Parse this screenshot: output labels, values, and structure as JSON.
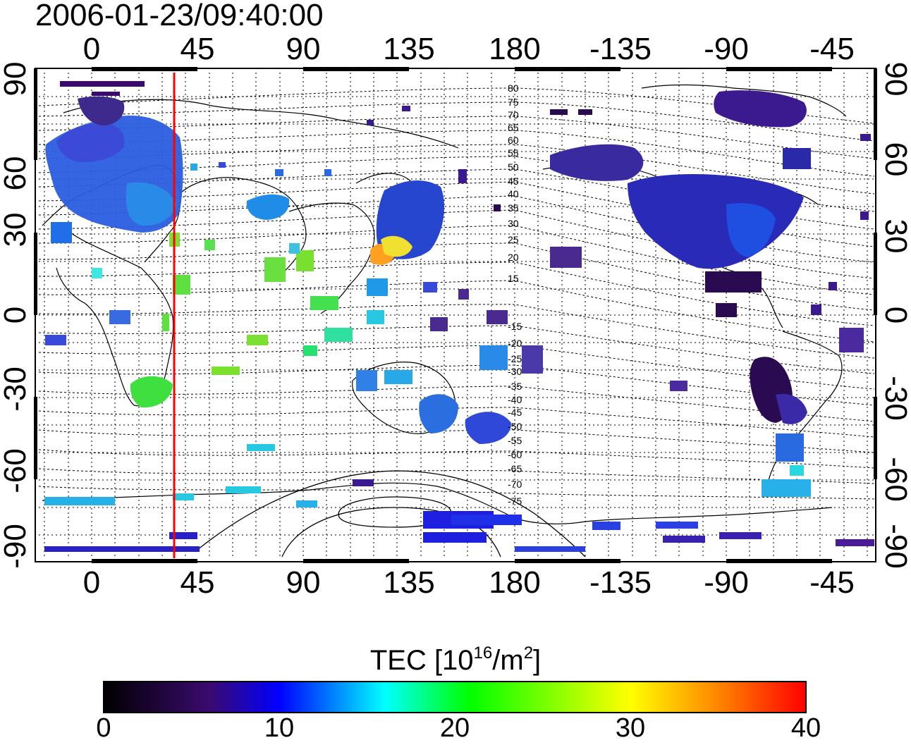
{
  "timestamp": "2006-01-23/09:40:00",
  "map": {
    "longitude_ticks": [
      "0",
      "45",
      "90",
      "135",
      "180",
      "-135",
      "-90",
      "-45"
    ],
    "latitude_ticks": [
      "90",
      "60",
      "30",
      "0",
      "-30",
      "-60",
      "-90"
    ],
    "contour_labels_north": [
      "80",
      "75",
      "70",
      "65",
      "60",
      "55",
      "50",
      "45",
      "40",
      "35",
      "30",
      "25",
      "20",
      "15"
    ],
    "contour_labels_south": [
      "-15",
      "-20",
      "-25",
      "-30",
      "-35",
      "-40",
      "-45",
      "-50",
      "-55",
      "-60",
      "-65",
      "-70",
      "-75"
    ],
    "terminator_color": "#ff0000"
  },
  "colorbar": {
    "title_main": "TEC  [10",
    "title_sup1": "16",
    "title_mid": "/m",
    "title_sup2": "2",
    "title_end": "]",
    "ticks": [
      "0",
      "10",
      "20",
      "30",
      "40"
    ],
    "colors": [
      "#000000",
      "#3a0a6e",
      "#0000ff",
      "#00ffff",
      "#00ff00",
      "#ffff00",
      "#ff0000"
    ]
  }
}
